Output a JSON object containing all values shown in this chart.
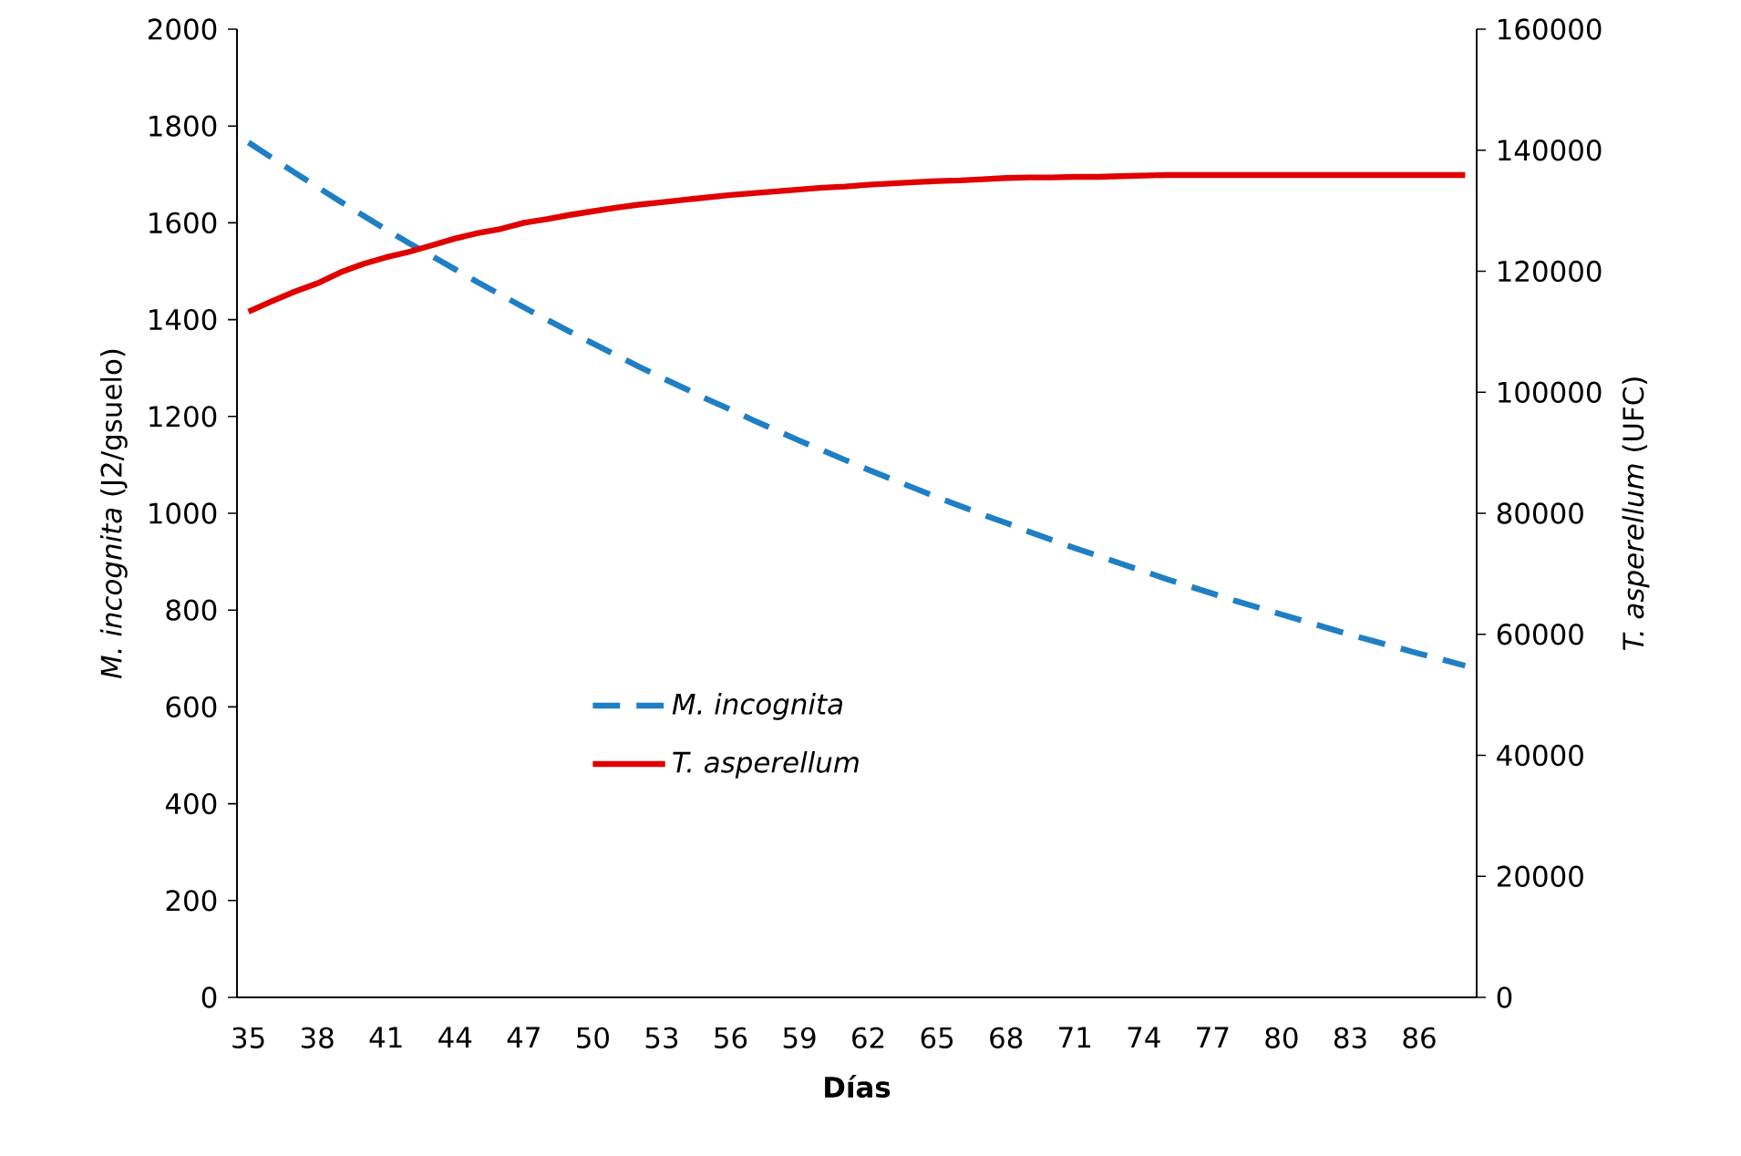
{
  "chart_data": {
    "type": "line",
    "xlabel": "Días",
    "ylabel": "*M. incognita* (J2/gsuelo)",
    "y2label": "*T. asperellum* (UFC)",
    "categories": [
      "35",
      null,
      null,
      "38",
      null,
      null,
      "41",
      null,
      null,
      "44",
      null,
      null,
      "47",
      null,
      null,
      "50",
      null,
      null,
      "53",
      null,
      null,
      "56",
      null,
      null,
      "59",
      null,
      null,
      "62",
      null,
      null,
      "65",
      null,
      null,
      "68",
      null,
      null,
      "71",
      null,
      null,
      "74",
      null,
      null,
      "77",
      null,
      null,
      "80",
      null,
      null,
      "83",
      null,
      null,
      "86",
      null,
      null
    ],
    "series": [
      {
        "name": "M. incognita",
        "color": "#1f7fc4",
        "line_style": "dashed",
        "values": [
          1766,
          1735,
          1704,
          1674,
          1644,
          1615,
          1586,
          1558,
          1531,
          1504,
          1477,
          1451,
          1425,
          1400,
          1375,
          1351,
          1327,
          1303,
          1280,
          1258,
          1235,
          1214,
          1192,
          1171,
          1150,
          1130,
          1110,
          1090,
          1071,
          1052,
          1033,
          1015,
          997,
          980,
          962,
          945,
          928,
          912,
          896,
          880,
          864,
          849,
          834,
          819,
          805,
          791,
          777,
          763,
          749,
          736,
          723,
          710,
          698,
          685
        ]
      },
      {
        "name": "T. asperellum",
        "color": "#e00000",
        "line_style": "solid",
        "axis": "y2",
        "values": [
          113300,
          115000,
          116600,
          118000,
          119800,
          121200,
          122300,
          123200,
          124300,
          125400,
          126300,
          127000,
          128000,
          128600,
          129300,
          129900,
          130500,
          131000,
          131400,
          131800,
          132200,
          132600,
          132900,
          133200,
          133500,
          133800,
          134000,
          134300,
          134500,
          134700,
          134900,
          135000,
          135200,
          135400,
          135500,
          135500,
          135600,
          135600,
          135700,
          135800,
          135900,
          135900,
          135900,
          135900,
          135900,
          135900,
          135900,
          135900,
          135900,
          135900,
          135900,
          135900,
          135900,
          135900
        ]
      }
    ],
    "ylim": [
      0,
      2000
    ],
    "yticks": [
      0,
      200,
      400,
      600,
      800,
      1000,
      1200,
      1400,
      1600,
      1800,
      2000
    ],
    "y2lim": [
      0,
      160000
    ],
    "y2ticks": [
      0,
      20000,
      40000,
      60000,
      80000,
      100000,
      120000,
      140000,
      160000
    ],
    "grid": false,
    "legend": "center",
    "marker": "none"
  }
}
